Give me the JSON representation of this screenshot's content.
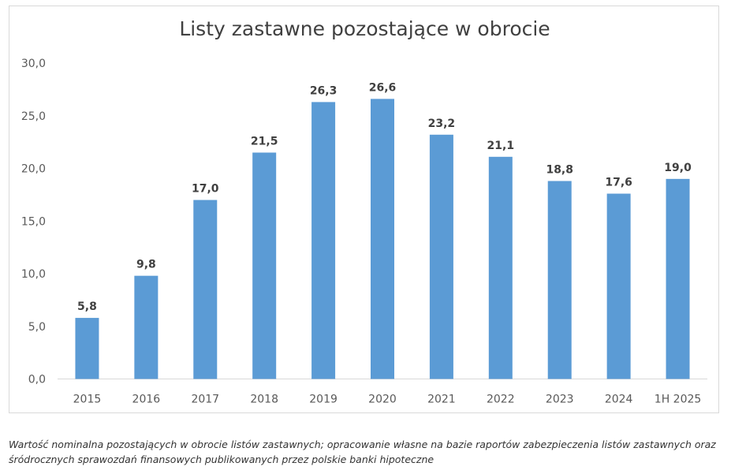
{
  "chart_data": {
    "type": "bar",
    "title": "Listy zastawne pozostające w obrocie",
    "categories": [
      "2015",
      "2016",
      "2017",
      "2018",
      "2019",
      "2020",
      "2021",
      "2022",
      "2023",
      "2024",
      "1H 2025"
    ],
    "values": [
      5.8,
      9.8,
      17.0,
      21.5,
      26.3,
      26.6,
      23.2,
      21.1,
      18.8,
      17.6,
      19.0
    ],
    "data_labels": [
      "5,8",
      "9,8",
      "17,0",
      "21,5",
      "26,3",
      "26,6",
      "23,2",
      "21,1",
      "18,8",
      "17,6",
      "19,0"
    ],
    "y_ticks": [
      0,
      5,
      10,
      15,
      20,
      25,
      30
    ],
    "y_tick_labels": [
      "0,0",
      "5,0",
      "10,0",
      "15,0",
      "20,0",
      "25,0",
      "30,0"
    ],
    "ylim": [
      0,
      30
    ],
    "xlabel": "",
    "ylabel": "",
    "grid": false,
    "legend": "none",
    "bar_color": "#5b9bd5"
  },
  "caption": {
    "line1": "Wartość nominalna pozostających w obrocie listów zastawnych; opracowanie własne na bazie raportów zabezpieczenia listów zastawnych oraz",
    "line2": "śródrocznych sprawozdań finansowych publikowanych przez polskie banki hipoteczne"
  }
}
